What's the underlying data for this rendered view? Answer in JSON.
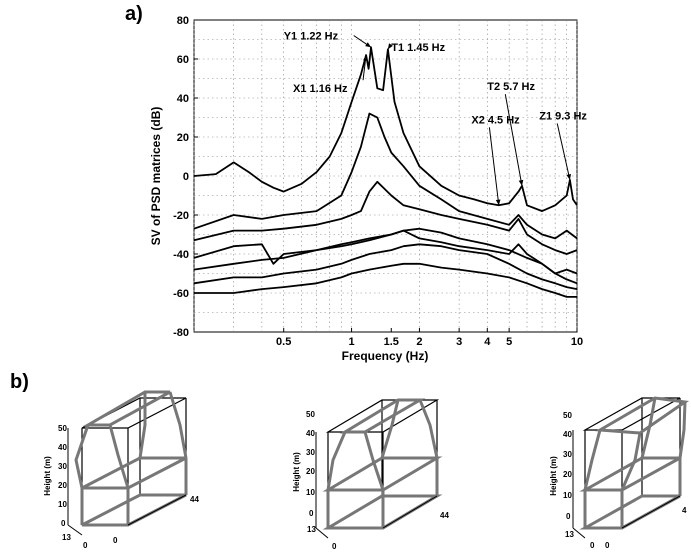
{
  "panel_a_label": "a)",
  "panel_b_label": "b)",
  "chart_data": {
    "type": "line",
    "title": "",
    "xlabel": "Frequency (Hz)",
    "ylabel": "SV of PSD matrices (dB)",
    "xscale": "log",
    "xlim": [
      0.2,
      10
    ],
    "ylim": [
      -80,
      80
    ],
    "xticks": [
      0.5,
      1,
      1.5,
      2,
      3,
      4,
      5,
      10
    ],
    "xtick_labels": [
      "0.5",
      "1",
      "1.5",
      "2",
      "3",
      "4",
      "5",
      "10"
    ],
    "yticks": [
      -80,
      -60,
      -40,
      -20,
      0,
      20,
      40,
      60,
      80
    ],
    "ytick_labels": [
      "-80",
      "-60",
      "-40",
      "-20",
      "0",
      "20",
      "40",
      "60",
      "80"
    ],
    "grid": true,
    "series": [
      {
        "x": [
          0.2,
          0.25,
          0.3,
          0.35,
          0.4,
          0.45,
          0.5,
          0.6,
          0.7,
          0.8,
          0.9,
          1.0,
          1.1,
          1.16,
          1.19,
          1.22,
          1.3,
          1.38,
          1.45,
          1.55,
          1.7,
          2.0,
          2.5,
          3.0,
          3.5,
          4.0,
          4.5,
          5.0,
          5.5,
          5.7,
          6.0,
          7.0,
          8.0,
          9.0,
          9.3,
          9.6,
          10
        ],
        "y": [
          0,
          1,
          7,
          2,
          -3,
          -6,
          -8,
          -4,
          2,
          10,
          22,
          38,
          52,
          62,
          55,
          66,
          45,
          44,
          65,
          38,
          22,
          5,
          -5,
          -10,
          -12,
          -14,
          -15,
          -14,
          -8,
          -5,
          -15,
          -18,
          -15,
          -10,
          -2,
          -12,
          -15
        ]
      },
      {
        "x": [
          0.2,
          0.3,
          0.4,
          0.5,
          0.7,
          0.9,
          1.0,
          1.1,
          1.2,
          1.3,
          1.4,
          1.5,
          1.7,
          2.0,
          2.5,
          3.0,
          4.0,
          5.0,
          5.5,
          6.0,
          7.0,
          8.0,
          9.0,
          10
        ],
        "y": [
          -27,
          -20,
          -22,
          -20,
          -18,
          -10,
          2,
          15,
          32,
          30,
          20,
          12,
          5,
          -5,
          -12,
          -18,
          -22,
          -25,
          -20,
          -25,
          -30,
          -32,
          -28,
          -32
        ]
      },
      {
        "x": [
          0.2,
          0.3,
          0.4,
          0.5,
          0.7,
          0.9,
          1.0,
          1.1,
          1.2,
          1.3,
          1.5,
          1.7,
          2.0,
          2.5,
          3.0,
          4.0,
          5.0,
          5.5,
          6.0,
          7.0,
          8.0,
          9.0,
          10
        ],
        "y": [
          -33,
          -28,
          -28,
          -27,
          -25,
          -22,
          -20,
          -18,
          -8,
          -3,
          -10,
          -15,
          -17,
          -20,
          -22,
          -25,
          -28,
          -22,
          -30,
          -35,
          -38,
          -40,
          -38
        ]
      },
      {
        "x": [
          0.2,
          0.3,
          0.4,
          0.45,
          0.5,
          0.7,
          0.9,
          1.0,
          1.2,
          1.5,
          1.7,
          2.0,
          2.5,
          3.0,
          4.0,
          5.0,
          5.5,
          6.0,
          7.0,
          8.0,
          9.0,
          10
        ],
        "y": [
          -42,
          -36,
          -35,
          -45,
          -40,
          -38,
          -35,
          -34,
          -32,
          -30,
          -28,
          -32,
          -34,
          -36,
          -38,
          -40,
          -35,
          -40,
          -45,
          -50,
          -48,
          -50
        ]
      },
      {
        "x": [
          0.2,
          0.3,
          0.4,
          0.5,
          0.7,
          0.9,
          1.0,
          1.2,
          1.5,
          1.7,
          2.0,
          2.5,
          3.0,
          4.0,
          5.0,
          6.0,
          7.0,
          8.0,
          9.0,
          10
        ],
        "y": [
          -48,
          -45,
          -43,
          -42,
          -38,
          -36,
          -35,
          -33,
          -30,
          -28,
          -27,
          -29,
          -32,
          -35,
          -38,
          -42,
          -45,
          -50,
          -53,
          -55
        ]
      },
      {
        "x": [
          0.2,
          0.3,
          0.4,
          0.5,
          0.7,
          0.9,
          1.0,
          1.2,
          1.5,
          1.7,
          2.0,
          2.5,
          3.0,
          4.0,
          5.0,
          6.0,
          7.0,
          8.0,
          9.0,
          10
        ],
        "y": [
          -55,
          -52,
          -52,
          -50,
          -48,
          -45,
          -43,
          -40,
          -38,
          -36,
          -35,
          -36,
          -38,
          -40,
          -45,
          -50,
          -53,
          -55,
          -57,
          -58
        ]
      },
      {
        "x": [
          0.2,
          0.3,
          0.4,
          0.5,
          0.7,
          0.9,
          1.0,
          1.2,
          1.5,
          1.7,
          2.0,
          2.5,
          3.0,
          4.0,
          5.0,
          6.0,
          7.0,
          8.0,
          9.0,
          10
        ],
        "y": [
          -60,
          -60,
          -58,
          -57,
          -55,
          -52,
          -50,
          -48,
          -46,
          -45,
          -45,
          -47,
          -48,
          -50,
          -52,
          -55,
          -58,
          -60,
          -62,
          -62
        ]
      }
    ],
    "annotations": [
      {
        "label": "Y1 1.22 Hz",
        "x": 1.22,
        "y": 66
      },
      {
        "label": "T1 1.45 Hz",
        "x": 1.45,
        "y": 65
      },
      {
        "label": "X1 1.16 Hz",
        "x": 1.16,
        "y": 62
      },
      {
        "label": "T2 5.7 Hz",
        "x": 5.7,
        "y": -5
      },
      {
        "label": "X2 4.5 Hz",
        "x": 4.5,
        "y": -15
      },
      {
        "label": "Z1 9.3 Hz",
        "x": 9.3,
        "y": -2
      }
    ]
  },
  "mode_shapes": [
    {
      "height_label": "Height (m)",
      "z_ticks": [
        "0",
        "10",
        "20",
        "30",
        "40",
        "50"
      ],
      "depth_tick": "13",
      "x_ticks": [
        "0",
        "0"
      ],
      "width_tick": "44"
    },
    {
      "height_label": "Height (m)",
      "z_ticks": [
        "0",
        "10",
        "20",
        "30",
        "40",
        "50"
      ],
      "depth_tick": "13",
      "x_ticks": [
        "0"
      ],
      "width_tick": "44"
    },
    {
      "height_label": "Height (m)",
      "z_ticks": [
        "0",
        "10",
        "20",
        "30",
        "40",
        "50"
      ],
      "depth_tick": "13",
      "x_ticks": [
        "0",
        "0"
      ],
      "width_tick": "4"
    }
  ]
}
